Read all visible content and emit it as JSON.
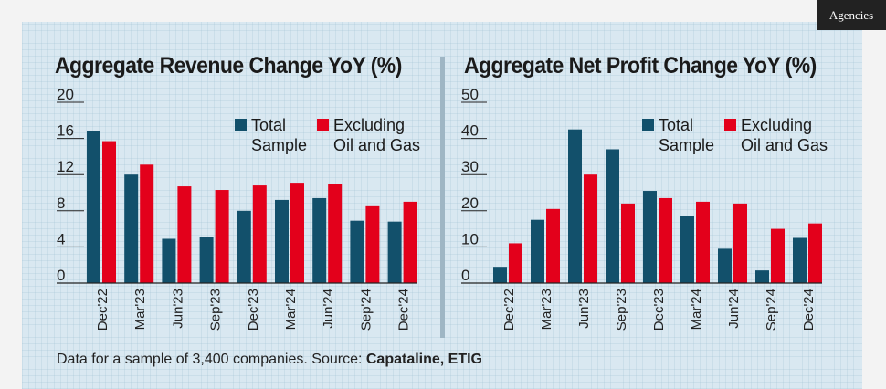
{
  "badge": "Agencies",
  "footnote": {
    "text": "Data for a sample of 3,400 companies. Source: ",
    "source": "Capataline, ETIG"
  },
  "colors": {
    "total": "#12506b",
    "excluding": "#e3001b",
    "axis": "#222222"
  },
  "chart_data": [
    {
      "type": "bar",
      "title": "Aggregate Revenue Change YoY (%)",
      "categories": [
        "Dec'22",
        "Mar'23",
        "Jun'23",
        "Sep'23",
        "Dec'23",
        "Mar'24",
        "Jun'24",
        "Sep'24",
        "Dec'24"
      ],
      "yticks": [
        0,
        4,
        8,
        12,
        16,
        20
      ],
      "ylim": [
        0,
        20
      ],
      "legend": [
        {
          "line1": "Total",
          "line2": "Sample"
        },
        {
          "line1": "Excluding",
          "line2": "Oil and Gas"
        }
      ],
      "series": [
        {
          "name": "Total Sample",
          "values": [
            16.8,
            12.0,
            4.9,
            5.1,
            8.0,
            9.2,
            9.4,
            6.9,
            6.8
          ]
        },
        {
          "name": "Excluding Oil and Gas",
          "values": [
            15.7,
            13.1,
            10.7,
            10.3,
            10.8,
            11.1,
            11.0,
            8.5,
            9.0
          ]
        }
      ]
    },
    {
      "type": "bar",
      "title": "Aggregate Net Profit Change YoY (%)",
      "categories": [
        "Dec'22",
        "Mar'23",
        "Jun'23",
        "Sep'23",
        "Dec'23",
        "Mar'24",
        "Jun'24",
        "Sep'24",
        "Dec'24"
      ],
      "yticks": [
        0,
        10,
        20,
        30,
        40,
        50
      ],
      "ylim": [
        0,
        50
      ],
      "legend": [
        {
          "line1": "Total",
          "line2": "Sample"
        },
        {
          "line1": "Excluding",
          "line2": "Oil and Gas"
        }
      ],
      "series": [
        {
          "name": "Total Sample",
          "values": [
            4.5,
            17.5,
            42.5,
            37.0,
            25.5,
            18.5,
            9.5,
            3.5,
            12.5
          ]
        },
        {
          "name": "Excluding Oil and Gas",
          "values": [
            11.0,
            20.5,
            30.0,
            22.0,
            23.5,
            22.5,
            22.0,
            15.0,
            16.5
          ]
        }
      ]
    }
  ]
}
